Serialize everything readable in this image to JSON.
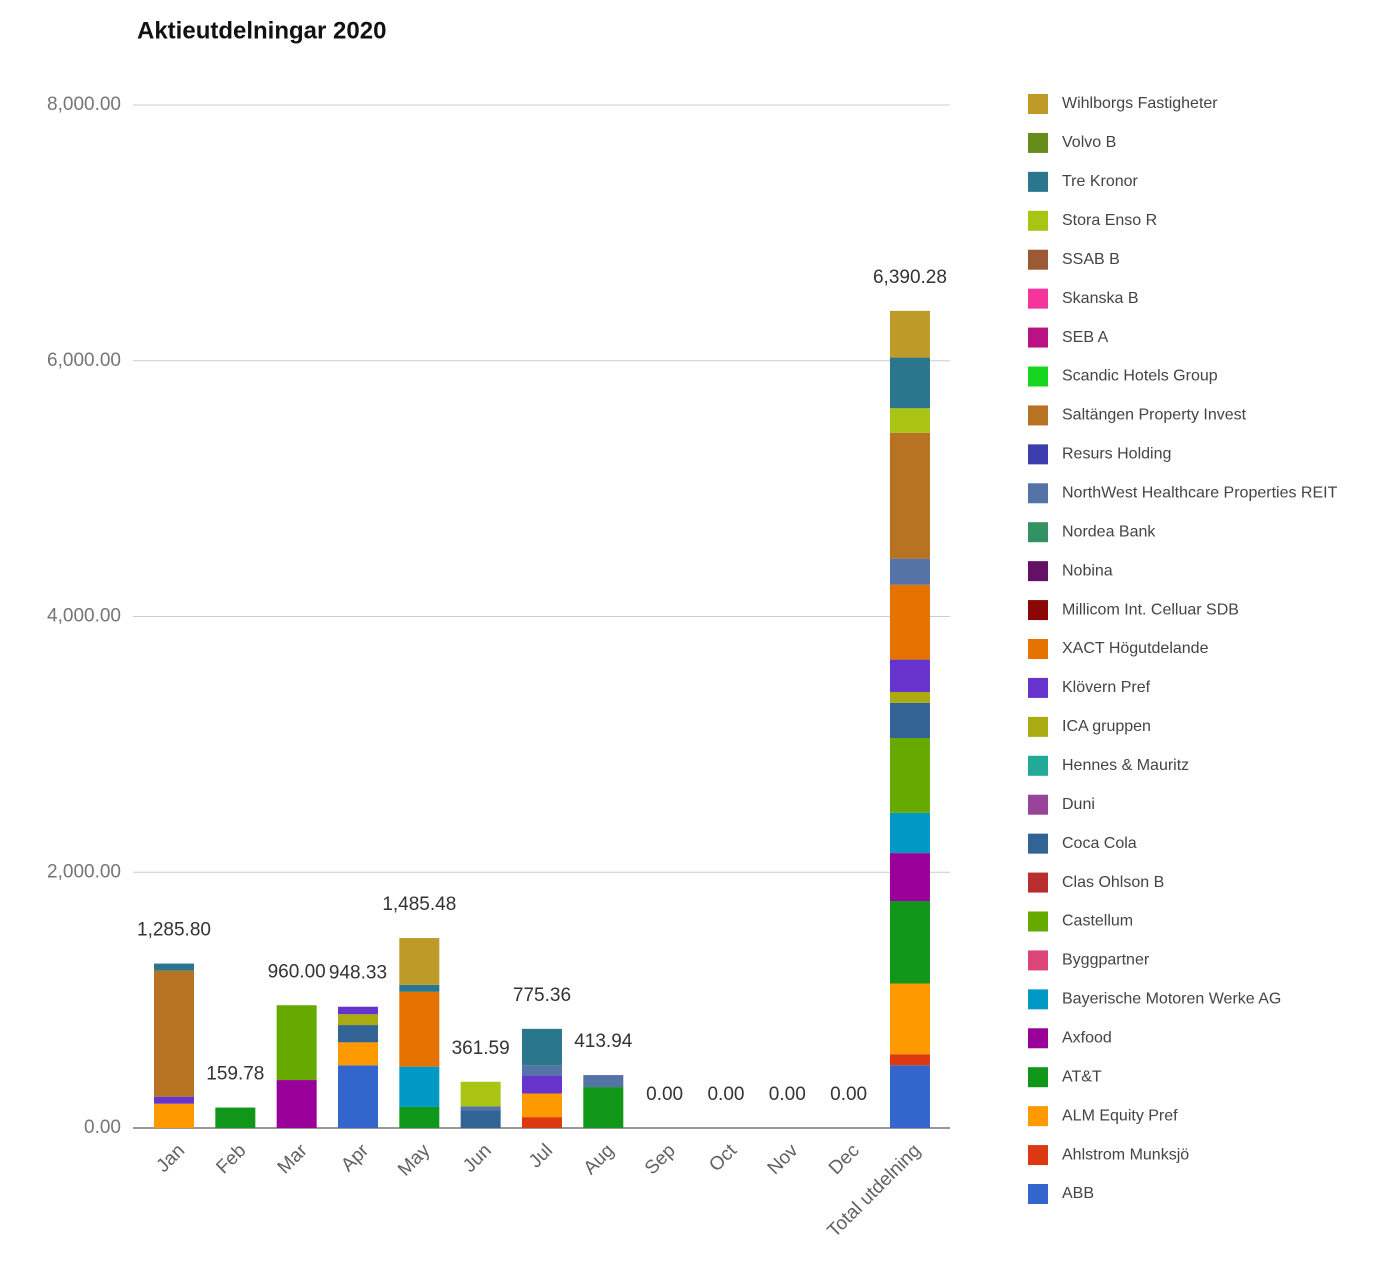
{
  "chart_data": {
    "type": "bar",
    "stacked": true,
    "title": "Aktieutdelningar 2020",
    "categories": [
      "Jan",
      "Feb",
      "Mar",
      "Apr",
      "May",
      "Jun",
      "Jul",
      "Aug",
      "Sep",
      "Oct",
      "Nov",
      "Dec",
      "Total utdelning"
    ],
    "ylim": [
      0,
      8000
    ],
    "yticks": [
      {
        "value": 0,
        "label": "0.00"
      },
      {
        "value": 2000,
        "label": "2,000.00"
      },
      {
        "value": 4000,
        "label": "4,000.00"
      },
      {
        "value": 6000,
        "label": "6,000.00"
      },
      {
        "value": 8000,
        "label": "8,000.00"
      }
    ],
    "grid": true,
    "legend": "right",
    "totals": [
      1285.8,
      159.78,
      960,
      948.33,
      1485.48,
      361.59,
      775.36,
      413.94,
      0,
      0,
      0,
      0,
      6390.28
    ],
    "total_labels": [
      "1,285.80",
      "159.78",
      "960.00",
      "948.33",
      "1,485.48",
      "361.59",
      "775.36",
      "413.94",
      "0.00",
      "0.00",
      "0.00",
      "0.00",
      "6,390.28"
    ],
    "series": [
      {
        "name": "Wihlborgs Fastigheter",
        "color": "#be9b28",
        "values": [
          0,
          0,
          0,
          0,
          365.48,
          0,
          0,
          0,
          0,
          0,
          0,
          0,
          365.48
        ]
      },
      {
        "name": "Volvo B",
        "color": "#668d1c",
        "values": [
          0,
          0,
          0,
          0,
          0,
          0,
          0,
          0,
          0,
          0,
          0,
          0,
          0
        ]
      },
      {
        "name": "Tre Kronor",
        "color": "#2a778d",
        "values": [
          55.8,
          0,
          0,
          0,
          55,
          0,
          285.36,
          0,
          0,
          0,
          0,
          0,
          396.16
        ]
      },
      {
        "name": "Stora Enso R",
        "color": "#a9c413",
        "values": [
          0,
          0,
          0,
          0,
          0,
          191.59,
          0,
          0,
          0,
          0,
          0,
          0,
          191.59
        ]
      },
      {
        "name": "SSAB B",
        "color": "#9c5935",
        "values": [
          0,
          0,
          0,
          0,
          0,
          0,
          0,
          0,
          0,
          0,
          0,
          0,
          0
        ]
      },
      {
        "name": "Skanska B",
        "color": "#f4359e",
        "values": [
          0,
          0,
          0,
          0,
          0,
          0,
          0,
          0,
          0,
          0,
          0,
          0,
          0
        ]
      },
      {
        "name": "SEB A",
        "color": "#b91383",
        "values": [
          0,
          0,
          0,
          0,
          0,
          0,
          0,
          0,
          0,
          0,
          0,
          0,
          0
        ]
      },
      {
        "name": "Scandic Hotels Group",
        "color": "#16d620",
        "values": [
          0,
          0,
          0,
          0,
          0,
          0,
          0,
          0,
          0,
          0,
          0,
          0,
          0
        ]
      },
      {
        "name": "Saltängen Property Invest",
        "color": "#b77322",
        "values": [
          985,
          0,
          0,
          0,
          0,
          0,
          0,
          0,
          0,
          0,
          0,
          0,
          985
        ]
      },
      {
        "name": "Resurs Holding",
        "color": "#3b3eac",
        "values": [
          0,
          0,
          0,
          0,
          0,
          0,
          0,
          0,
          0,
          0,
          0,
          0,
          0
        ]
      },
      {
        "name": "NorthWest Healthcare Properties REIT",
        "color": "#5574a6",
        "values": [
          0,
          0,
          0,
          0,
          0,
          30,
          80,
          93.94,
          0,
          0,
          0,
          0,
          203.94
        ]
      },
      {
        "name": "Nordea Bank",
        "color": "#329262",
        "values": [
          0,
          0,
          0,
          0,
          0,
          0,
          0,
          0,
          0,
          0,
          0,
          0,
          0
        ]
      },
      {
        "name": "Nobina",
        "color": "#651067",
        "values": [
          0,
          0,
          0,
          0,
          0,
          0,
          0,
          0,
          0,
          0,
          0,
          0,
          0
        ]
      },
      {
        "name": "Millicom Int. Celluar SDB",
        "color": "#8b0707",
        "values": [
          0,
          0,
          0,
          0,
          0,
          0,
          0,
          0,
          0,
          0,
          0,
          0,
          0
        ]
      },
      {
        "name": "XACT Högutdelande",
        "color": "#e67300",
        "values": [
          0,
          0,
          0,
          0,
          585,
          0,
          0,
          0,
          0,
          0,
          0,
          0,
          585
        ]
      },
      {
        "name": "Klövern Pref",
        "color": "#6633cc",
        "values": [
          55,
          0,
          0,
          58.33,
          0,
          0,
          140,
          0,
          0,
          0,
          0,
          0,
          253.33
        ]
      },
      {
        "name": "ICA gruppen",
        "color": "#aaaa11",
        "values": [
          0,
          0,
          0,
          85,
          0,
          0,
          0,
          0,
          0,
          0,
          0,
          0,
          85
        ]
      },
      {
        "name": "Hennes & Mauritz",
        "color": "#22aa99",
        "values": [
          0,
          0,
          0,
          0,
          0,
          0,
          0,
          0,
          0,
          0,
          0,
          0,
          0
        ]
      },
      {
        "name": "Duni",
        "color": "#994499",
        "values": [
          0,
          0,
          0,
          0,
          0,
          0,
          0,
          0,
          0,
          0,
          0,
          0,
          0
        ]
      },
      {
        "name": "Coca Cola",
        "color": "#316395",
        "values": [
          0,
          0,
          0,
          135,
          0,
          140,
          0,
          0,
          0,
          0,
          0,
          0,
          275
        ]
      },
      {
        "name": "Clas Ohlson B",
        "color": "#b82e2e",
        "values": [
          0,
          0,
          0,
          0,
          0,
          0,
          0,
          0,
          0,
          0,
          0,
          0,
          0
        ]
      },
      {
        "name": "Castellum",
        "color": "#66aa00",
        "values": [
          0,
          0,
          585,
          0,
          0,
          0,
          0,
          0,
          0,
          0,
          0,
          0,
          585
        ]
      },
      {
        "name": "Byggpartner",
        "color": "#dd4477",
        "values": [
          0,
          0,
          0,
          0,
          0,
          0,
          0,
          0,
          0,
          0,
          0,
          0,
          0
        ]
      },
      {
        "name": "Bayerische Motoren Werke AG",
        "color": "#0099c6",
        "values": [
          0,
          0,
          0,
          0,
          315,
          0,
          0,
          0,
          0,
          0,
          0,
          0,
          315
        ]
      },
      {
        "name": "Axfood",
        "color": "#990099",
        "values": [
          0,
          0,
          375,
          0,
          0,
          0,
          0,
          0,
          0,
          0,
          0,
          0,
          375
        ]
      },
      {
        "name": "AT&T",
        "color": "#109618",
        "values": [
          0,
          159.78,
          0,
          0,
          165,
          0,
          0,
          320,
          0,
          0,
          0,
          0,
          644.78
        ]
      },
      {
        "name": "ALM Equity Pref",
        "color": "#ff9900",
        "values": [
          190,
          0,
          0,
          180,
          0,
          0,
          185,
          0,
          0,
          0,
          0,
          0,
          555
        ]
      },
      {
        "name": "Ahlstrom Munksjö",
        "color": "#dc3912",
        "values": [
          0,
          0,
          0,
          0,
          0,
          0,
          85,
          0,
          0,
          0,
          0,
          0,
          85
        ]
      },
      {
        "name": "ABB",
        "color": "#3366cc",
        "values": [
          0,
          0,
          0,
          490,
          0,
          0,
          0,
          0,
          0,
          0,
          0,
          0,
          490
        ]
      }
    ]
  }
}
